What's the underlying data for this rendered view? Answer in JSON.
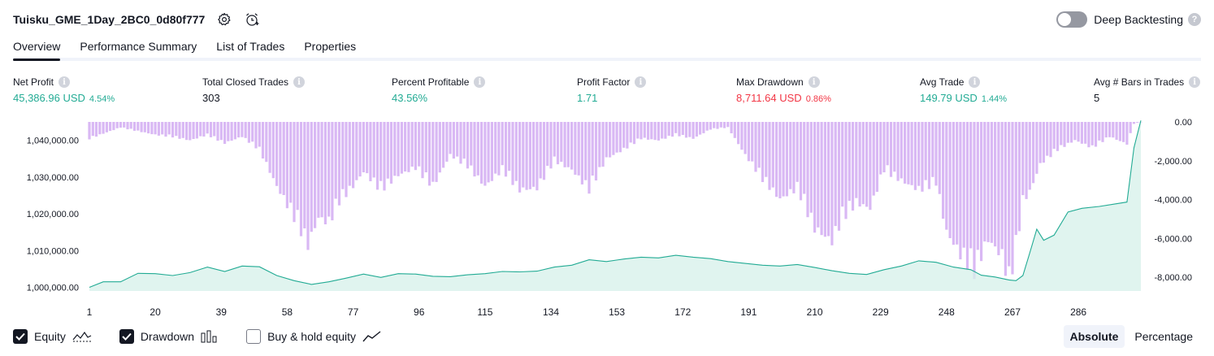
{
  "header": {
    "strategy_name": "Tuisku_GME_1Day_2BC0_0d80f777",
    "icons": [
      "settings-icon",
      "alarm-add-icon"
    ]
  },
  "deep_backtesting": {
    "label": "Deep Backtesting",
    "enabled": false,
    "help": "?"
  },
  "tabs": [
    "Overview",
    "Performance Summary",
    "List of Trades",
    "Properties"
  ],
  "active_tab": "Overview",
  "metrics": [
    {
      "label": "Net Profit",
      "value": "45,386.96 USD",
      "sub": "4.54%",
      "tone": "pos"
    },
    {
      "label": "Total Closed Trades",
      "value": "303",
      "sub": "",
      "tone": "neutral"
    },
    {
      "label": "Percent Profitable",
      "value": "43.56%",
      "sub": "",
      "tone": "pos"
    },
    {
      "label": "Profit Factor",
      "value": "1.71",
      "sub": "",
      "tone": "pos"
    },
    {
      "label": "Max Drawdown",
      "value": "8,711.64 USD",
      "sub": "0.86%",
      "tone": "neg"
    },
    {
      "label": "Avg Trade",
      "value": "149.79 USD",
      "sub": "1.44%",
      "tone": "pos"
    },
    {
      "label": "Avg # Bars in Trades",
      "value": "5",
      "sub": "",
      "tone": "neutral"
    }
  ],
  "legend": {
    "equity": {
      "label": "Equity",
      "checked": true
    },
    "drawdown": {
      "label": "Drawdown",
      "checked": true
    },
    "buy_hold": {
      "label": "Buy & hold equity",
      "checked": false
    }
  },
  "mode": {
    "options": [
      "Absolute",
      "Percentage"
    ],
    "active": "Absolute"
  },
  "colors": {
    "equity_line": "#22ab94",
    "equity_fill": "#d5f0ea",
    "drawdown_bar": "#d9b8f4",
    "positive": "#22ab94",
    "negative": "#f23645"
  },
  "chart_data": {
    "type": "bar+area",
    "x_ticks": [
      "1",
      "20",
      "39",
      "58",
      "77",
      "96",
      "115",
      "134",
      "153",
      "172",
      "191",
      "210",
      "229",
      "248",
      "267",
      "286"
    ],
    "x_tick_values": [
      1,
      20,
      39,
      58,
      77,
      96,
      115,
      134,
      153,
      172,
      191,
      210,
      229,
      248,
      267,
      286
    ],
    "x_range": [
      1,
      304
    ],
    "left_axis": {
      "ticks": [
        "1,040,000.00",
        "1,030,000.00",
        "1,020,000.00",
        "1,010,000.00",
        "1,000,000.00"
      ],
      "values": [
        1040000,
        1030000,
        1020000,
        1010000,
        1000000
      ],
      "range": [
        999000,
        1045000
      ]
    },
    "right_axis": {
      "ticks": [
        "0.00",
        "-2,000.00",
        "-4,000.00",
        "-6,000.00",
        "-8,000.00"
      ],
      "values": [
        0,
        -2000,
        -4000,
        -6000,
        -8000
      ],
      "range": [
        -8711.64,
        0
      ]
    },
    "equity": [
      [
        1,
        1000000
      ],
      [
        5,
        1001500
      ],
      [
        10,
        1001500
      ],
      [
        15,
        1003800
      ],
      [
        20,
        1003700
      ],
      [
        25,
        1003200
      ],
      [
        30,
        1004000
      ],
      [
        35,
        1005500
      ],
      [
        40,
        1004300
      ],
      [
        45,
        1005800
      ],
      [
        50,
        1005600
      ],
      [
        55,
        1003200
      ],
      [
        60,
        1001800
      ],
      [
        65,
        1000800
      ],
      [
        70,
        1001500
      ],
      [
        75,
        1002500
      ],
      [
        80,
        1003600
      ],
      [
        85,
        1002700
      ],
      [
        90,
        1003700
      ],
      [
        95,
        1003600
      ],
      [
        100,
        1003000
      ],
      [
        105,
        1002900
      ],
      [
        110,
        1003400
      ],
      [
        115,
        1003700
      ],
      [
        120,
        1004300
      ],
      [
        125,
        1004200
      ],
      [
        130,
        1004400
      ],
      [
        135,
        1005500
      ],
      [
        140,
        1006000
      ],
      [
        145,
        1007500
      ],
      [
        150,
        1007000
      ],
      [
        155,
        1007700
      ],
      [
        160,
        1008200
      ],
      [
        165,
        1008000
      ],
      [
        170,
        1008700
      ],
      [
        175,
        1008200
      ],
      [
        180,
        1007800
      ],
      [
        185,
        1007000
      ],
      [
        190,
        1006500
      ],
      [
        195,
        1006000
      ],
      [
        200,
        1005800
      ],
      [
        205,
        1006200
      ],
      [
        210,
        1005400
      ],
      [
        215,
        1004500
      ],
      [
        220,
        1003800
      ],
      [
        225,
        1003500
      ],
      [
        230,
        1004800
      ],
      [
        235,
        1005800
      ],
      [
        240,
        1007200
      ],
      [
        245,
        1006800
      ],
      [
        250,
        1005500
      ],
      [
        255,
        1004800
      ],
      [
        258,
        1003300
      ],
      [
        262,
        1002800
      ],
      [
        266,
        1002000
      ],
      [
        268,
        1001800
      ],
      [
        270,
        1003200
      ],
      [
        272,
        1009400
      ],
      [
        274,
        1015800
      ],
      [
        276,
        1012800
      ],
      [
        279,
        1014200
      ],
      [
        283,
        1020500
      ],
      [
        287,
        1021500
      ],
      [
        292,
        1022000
      ],
      [
        296,
        1022600
      ],
      [
        300,
        1023200
      ],
      [
        302,
        1038000
      ],
      [
        304,
        1045400
      ]
    ],
    "drawdown": [
      [
        1,
        -900
      ],
      [
        10,
        -300
      ],
      [
        20,
        -700
      ],
      [
        25,
        -800
      ],
      [
        30,
        -1000
      ],
      [
        35,
        -700
      ],
      [
        40,
        -1150
      ],
      [
        45,
        -800
      ],
      [
        50,
        -1500
      ],
      [
        55,
        -3500
      ],
      [
        58,
        -4500
      ],
      [
        61,
        -5500
      ],
      [
        64,
        -6700
      ],
      [
        67,
        -5200
      ],
      [
        70,
        -5500
      ],
      [
        73,
        -4300
      ],
      [
        77,
        -3500
      ],
      [
        80,
        -2700
      ],
      [
        85,
        -3700
      ],
      [
        90,
        -2900
      ],
      [
        95,
        -2500
      ],
      [
        100,
        -3500
      ],
      [
        105,
        -1800
      ],
      [
        110,
        -2400
      ],
      [
        115,
        -3500
      ],
      [
        120,
        -2600
      ],
      [
        125,
        -3700
      ],
      [
        130,
        -3600
      ],
      [
        135,
        -2100
      ],
      [
        140,
        -2600
      ],
      [
        145,
        -3700
      ],
      [
        150,
        -2000
      ],
      [
        155,
        -1500
      ],
      [
        160,
        -900
      ],
      [
        165,
        -1000
      ],
      [
        170,
        -700
      ],
      [
        175,
        -900
      ],
      [
        180,
        -400
      ],
      [
        185,
        -300
      ],
      [
        190,
        -1800
      ],
      [
        195,
        -3100
      ],
      [
        200,
        -4200
      ],
      [
        205,
        -3600
      ],
      [
        210,
        -5800
      ],
      [
        215,
        -6500
      ],
      [
        218,
        -5200
      ],
      [
        222,
        -4400
      ],
      [
        226,
        -4700
      ],
      [
        230,
        -2600
      ],
      [
        235,
        -3200
      ],
      [
        240,
        -3700
      ],
      [
        245,
        -3300
      ],
      [
        248,
        -6000
      ],
      [
        252,
        -7200
      ],
      [
        256,
        -8100
      ],
      [
        260,
        -6400
      ],
      [
        264,
        -7300
      ],
      [
        266,
        -8711.64
      ],
      [
        268,
        -7000
      ],
      [
        270,
        -4300
      ],
      [
        272,
        -3800
      ],
      [
        275,
        -2300
      ],
      [
        280,
        -1500
      ],
      [
        285,
        -1000
      ],
      [
        290,
        -1400
      ],
      [
        295,
        -800
      ],
      [
        300,
        -1200
      ],
      [
        302,
        -100
      ],
      [
        304,
        0
      ]
    ]
  }
}
